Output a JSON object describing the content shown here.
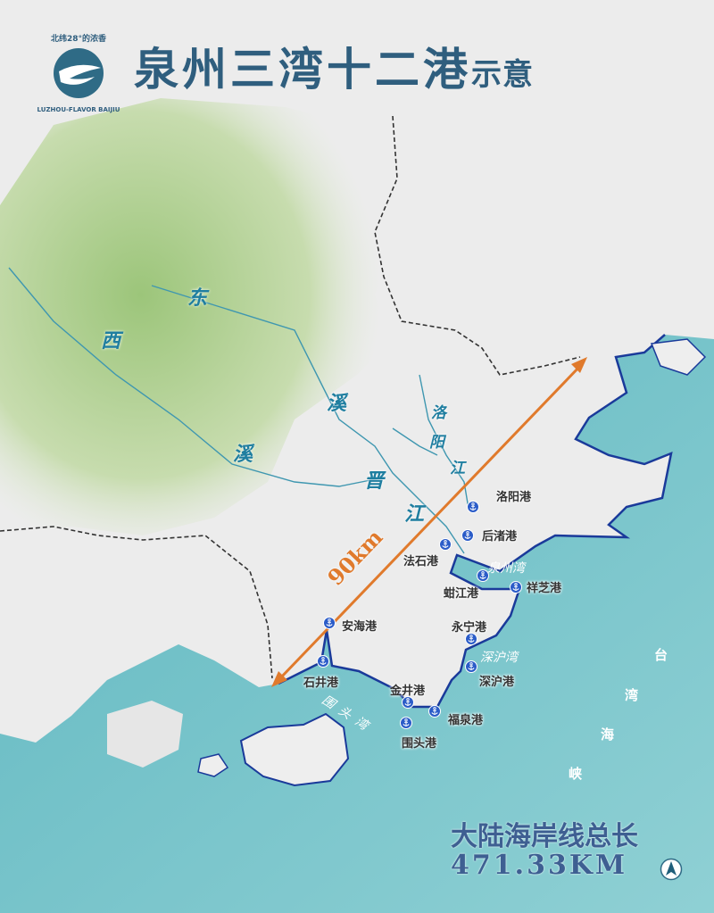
{
  "header": {
    "title_main": "泉州三湾十二港",
    "title_suffix": "示意",
    "logo": {
      "text_cn": "北纬28°的浓香",
      "text_en": "LUZHOU - FLAVOR BAIJIU"
    }
  },
  "colors": {
    "title": "#2f5e7e",
    "sea": "#6fc0c8",
    "coastline": "#1a3a9a",
    "port_icon": "#2b5cc8",
    "distance": "#e07a2c",
    "river": "#1f7ea0",
    "border": "#333333"
  },
  "rivers": [
    {
      "chars": [
        "东",
        "溪"
      ]
    },
    {
      "chars": [
        "西",
        "溪"
      ]
    },
    {
      "chars": [
        "洛",
        "阳",
        "江"
      ]
    },
    {
      "chars": [
        "晋",
        "江"
      ]
    }
  ],
  "distance": {
    "label": "90km"
  },
  "ports": [
    {
      "name": "洛阳港",
      "icon": "anchor-icon"
    },
    {
      "name": "后渚港",
      "icon": "anchor-icon"
    },
    {
      "name": "法石港",
      "icon": "anchor-icon"
    },
    {
      "name": "蚶江港",
      "icon": "anchor-icon"
    },
    {
      "name": "祥芝港",
      "icon": "anchor-icon"
    },
    {
      "name": "安海港",
      "icon": "anchor-icon"
    },
    {
      "name": "石井港",
      "icon": "anchor-icon"
    },
    {
      "name": "永宁港",
      "icon": "anchor-icon"
    },
    {
      "name": "深沪港",
      "icon": "anchor-icon"
    },
    {
      "name": "金井港",
      "icon": "anchor-icon"
    },
    {
      "name": "福泉港",
      "icon": "anchor-icon"
    },
    {
      "name": "围头港",
      "icon": "anchor-icon"
    }
  ],
  "bays": [
    {
      "name": "泉州湾"
    },
    {
      "name": "深沪湾"
    },
    {
      "name": "围头湾",
      "chars": [
        "围",
        "头",
        "湾"
      ]
    }
  ],
  "strait": {
    "chars": [
      "台",
      "湾",
      "海",
      "峡"
    ]
  },
  "coastline": {
    "label": "大陆海岸线总长",
    "value": "471.33KM"
  },
  "compass": {
    "icon": "north-arrow-icon"
  }
}
